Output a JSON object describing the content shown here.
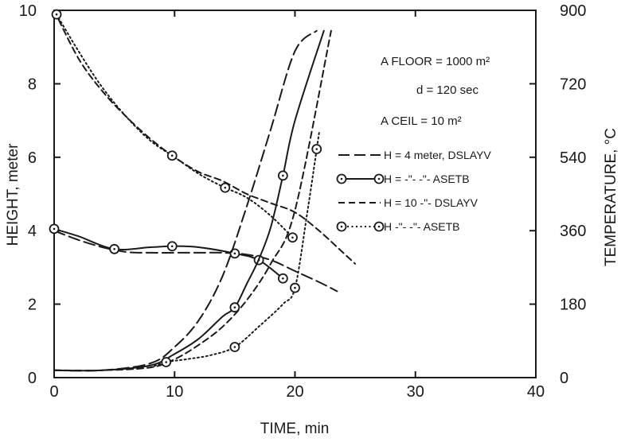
{
  "chart_data": {
    "type": "line",
    "xlabel": "TIME, min",
    "ylabel_left": "HEIGHT, meter",
    "ylabel_right": "TEMPERATURE, °C",
    "xlim": [
      0,
      40
    ],
    "ylim_left": [
      0,
      10
    ],
    "ylim_right": [
      0,
      900
    ],
    "x_ticks": [
      "0",
      "10",
      "20",
      "30",
      "40"
    ],
    "y_left_ticks": [
      "0",
      "2",
      "4",
      "6",
      "8",
      "10"
    ],
    "y_right_ticks": [
      "0",
      "180",
      "360",
      "540",
      "720",
      "900"
    ],
    "grid": false,
    "annotations": {
      "floor": "A FLOOR = 1000 m²",
      "d": "d = 120 sec",
      "ceil": "A CEIL = 10 m²"
    },
    "legend_position": "right",
    "legend": [
      {
        "text": "H = 4 meter, DSLAYV",
        "style": "long-dash"
      },
      {
        "text": "H = -\"- -\"-      ASETB",
        "style": "solid-circles"
      },
      {
        "text": "H = 10  -\"-      DSLAYV",
        "style": "short-dash"
      },
      {
        "text": "H  -\"-  -\"-      ASETB",
        "style": "dotted-circles"
      }
    ],
    "series": [
      {
        "style": "long-dash",
        "axis": "left",
        "quantity": "height",
        "x": [
          0,
          2,
          4,
          6,
          8,
          10,
          12,
          14,
          16,
          18,
          20,
          22,
          23.5
        ],
        "y": [
          4.0,
          3.75,
          3.55,
          3.42,
          3.4,
          3.4,
          3.4,
          3.4,
          3.35,
          3.2,
          2.9,
          2.6,
          2.35
        ]
      },
      {
        "style": "solid-circles",
        "axis": "left",
        "quantity": "height",
        "x": [
          0,
          2,
          5,
          8,
          10,
          12,
          15,
          17,
          19
        ],
        "y": [
          4.05,
          3.85,
          3.5,
          3.55,
          3.58,
          3.55,
          3.38,
          3.2,
          2.7
        ],
        "markers_x": [
          0,
          5,
          9.8,
          15,
          17,
          19
        ]
      },
      {
        "style": "short-dash",
        "axis": "left",
        "quantity": "height",
        "x": [
          0,
          2,
          4,
          6,
          8,
          10,
          12,
          14,
          16,
          18,
          20,
          22,
          24,
          25
        ],
        "y": [
          10,
          8.7,
          7.8,
          7.1,
          6.5,
          6.0,
          5.6,
          5.35,
          5.0,
          4.75,
          4.5,
          4.0,
          3.4,
          3.1
        ]
      },
      {
        "style": "dotted-circles",
        "axis": "left",
        "quantity": "height",
        "x": [
          0,
          2,
          4,
          6,
          8,
          10,
          12,
          14,
          16,
          18,
          20
        ],
        "y": [
          10,
          8.9,
          7.9,
          7.1,
          6.45,
          6.0,
          5.55,
          5.2,
          4.9,
          4.4,
          3.75
        ],
        "markers_x": [
          0.2,
          9.8,
          14.2,
          19.8
        ]
      },
      {
        "style": "long-dash",
        "axis": "right",
        "quantity": "temperature",
        "x": [
          0,
          4,
          8,
          10,
          12,
          14,
          16,
          18,
          20,
          21.8
        ],
        "y": [
          18,
          18,
          35,
          75,
          140,
          250,
          420,
          610,
          800,
          850
        ]
      },
      {
        "style": "solid-circles",
        "axis": "right",
        "quantity": "temperature",
        "x": [
          0,
          4,
          8,
          10,
          12,
          14,
          15,
          16,
          17,
          18,
          19,
          20,
          22.4
        ],
        "y": [
          18,
          18,
          30,
          58,
          95,
          150,
          172,
          230,
          290,
          370,
          495,
          630,
          850
        ],
        "markers_x": [
          15,
          19
        ]
      },
      {
        "style": "short-dash",
        "axis": "right",
        "quantity": "temperature",
        "x": [
          0,
          4,
          8,
          10,
          12,
          14,
          16,
          18,
          20,
          23
        ],
        "y": [
          18,
          18,
          25,
          45,
          80,
          125,
          190,
          280,
          410,
          850
        ]
      },
      {
        "style": "dotted-circles",
        "axis": "right",
        "quantity": "temperature",
        "x": [
          8,
          9.3,
          11,
          13,
          15,
          17,
          19,
          20,
          21,
          22
        ],
        "y": [
          25,
          38,
          45,
          55,
          75,
          125,
          180,
          220,
          400,
          600
        ],
        "markers_x": [
          9.3,
          15,
          20,
          21.8
        ]
      }
    ]
  }
}
